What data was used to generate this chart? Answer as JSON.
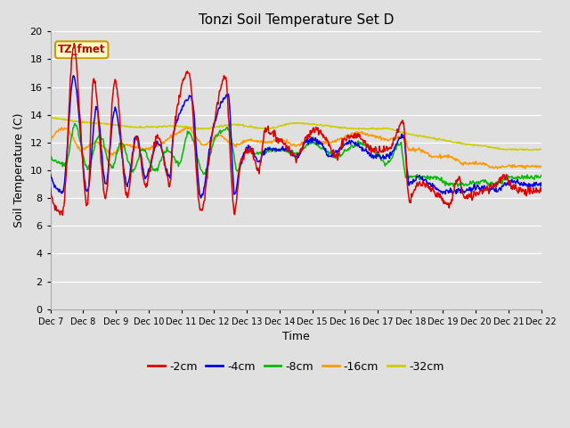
{
  "title": "Tonzi Soil Temperature Set D",
  "xlabel": "Time",
  "ylabel": "Soil Temperature (C)",
  "ylim": [
    0,
    20
  ],
  "yticks": [
    0,
    2,
    4,
    6,
    8,
    10,
    12,
    14,
    16,
    18,
    20
  ],
  "x_labels": [
    "Dec 7",
    "Dec 8",
    "Dec 9",
    "Dec 10",
    "Dec 11",
    "Dec 12",
    "Dec 13",
    "Dec 14",
    "Dec 15",
    "Dec 16",
    "Dec 17",
    "Dec 18",
    "Dec 19",
    "Dec 20",
    "Dec 21",
    "Dec 22"
  ],
  "legend_label": "TZ_fmet",
  "series_labels": [
    "-2cm",
    "-4cm",
    "-8cm",
    "-16cm",
    "-32cm"
  ],
  "series_colors": [
    "#dd0000",
    "#0000ee",
    "#00bb00",
    "#ff9900",
    "#cccc00"
  ],
  "background_color": "#e0e0e0",
  "grid_color": "#ffffff",
  "figsize": [
    6.4,
    4.8
  ],
  "dpi": 100
}
